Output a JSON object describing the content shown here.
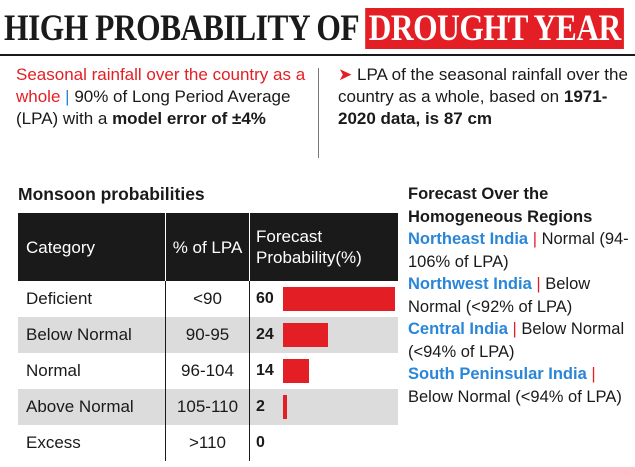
{
  "headline": {
    "part1": "HIGH PROBABILITY OF ",
    "part2": "DROUGHT YEAR"
  },
  "left_note": {
    "lead": "Seasonal rainfall over the country as a whole",
    "separator": "|",
    "text1": "90% of Long Period Average (LPA) with a",
    "bold": "model error of ±4%"
  },
  "right_note": {
    "arrow": "➤",
    "text": "LPA of the seasonal rainfall over the country as a whole, based on",
    "bold": "1971-2020 data, is 87 cm"
  },
  "section_title": "Monsoon probabilities",
  "table": {
    "headers": [
      "Category",
      "% of LPA",
      "Forecast Probability(%)"
    ]
  },
  "chart_data": {
    "type": "table",
    "columns": [
      "Category",
      "% of LPA",
      "Forecast Probability(%)"
    ],
    "rows": [
      {
        "category": "Deficient",
        "lpa": "<90",
        "probability": 60
      },
      {
        "category": "Below Normal",
        "lpa": "90-95",
        "probability": 24
      },
      {
        "category": "Normal",
        "lpa": "96-104",
        "probability": 14
      },
      {
        "category": "Above Normal",
        "lpa": "105-110",
        "probability": 2
      },
      {
        "category": "Excess",
        "lpa": ">110",
        "probability": 0
      }
    ],
    "bar_color": "#e31e24",
    "bar_max": 60
  },
  "forecast": {
    "title": "Forecast Over the Homogeneous Regions",
    "separator": "|",
    "regions": [
      {
        "name": "Northeast India",
        "text": "Normal (94-106% of LPA)"
      },
      {
        "name": "Northwest India",
        "text": "Below Normal (<92% of LPA)"
      },
      {
        "name": "Central India",
        "text": "Below Normal (<94% of LPA)"
      },
      {
        "name": "South Peninsular India",
        "text": "Below Normal (<94% of LPA)"
      }
    ]
  },
  "colors": {
    "accent_red": "#e31e24",
    "accent_blue": "#2a86d8",
    "dark": "#1a1a1a",
    "alt_row": "#dcdcdc"
  }
}
